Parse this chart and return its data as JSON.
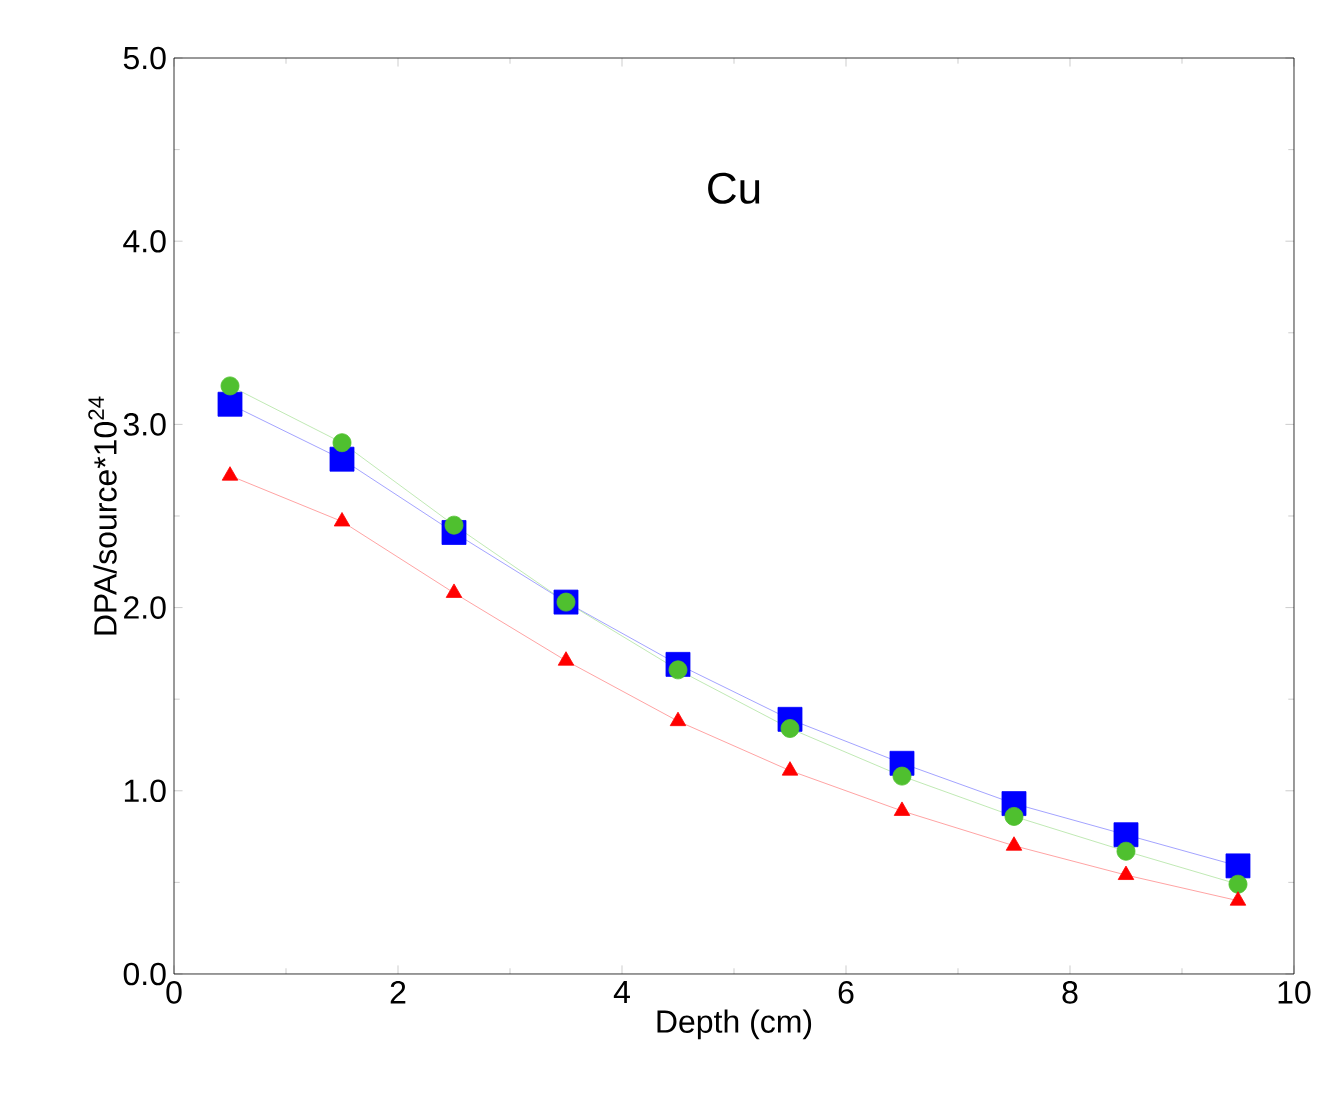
{
  "chart_data": {
    "type": "line",
    "title": "Cu",
    "xlabel": "Depth (cm)",
    "ylabel": "DPA/source*10$^{24}$",
    "x": [
      0.5,
      1.5,
      2.5,
      3.5,
      4.5,
      5.5,
      6.5,
      7.5,
      8.5,
      9.5
    ],
    "series": [
      {
        "color": "#0000ff",
        "marker": "square",
        "values": [
          3.11,
          2.81,
          2.41,
          2.03,
          1.69,
          1.39,
          1.15,
          0.93,
          0.76,
          0.59
        ]
      },
      {
        "color": "#4fc02f",
        "marker": "circle",
        "values": [
          3.21,
          2.9,
          2.45,
          2.03,
          1.66,
          1.34,
          1.08,
          0.86,
          0.67,
          0.49
        ]
      },
      {
        "color": "#ff0000",
        "marker": "triangle",
        "values": [
          2.72,
          2.47,
          2.08,
          1.71,
          1.38,
          1.11,
          0.89,
          0.7,
          0.54,
          0.4
        ]
      }
    ],
    "xlim": [
      0,
      10
    ],
    "xticks": [
      0,
      2,
      4,
      6,
      8,
      10
    ],
    "ylim": [
      0,
      5
    ],
    "yticks": [
      {
        "value": 0,
        "label": "0.0"
      },
      {
        "value": 1,
        "label": "1.0"
      },
      {
        "value": 2,
        "label": "2.0"
      },
      {
        "value": 3,
        "label": "3.0"
      },
      {
        "value": 4,
        "label": "4.0"
      },
      {
        "value": 5,
        "label": "5.0"
      }
    ],
    "grid": false,
    "line_style": "solid"
  }
}
